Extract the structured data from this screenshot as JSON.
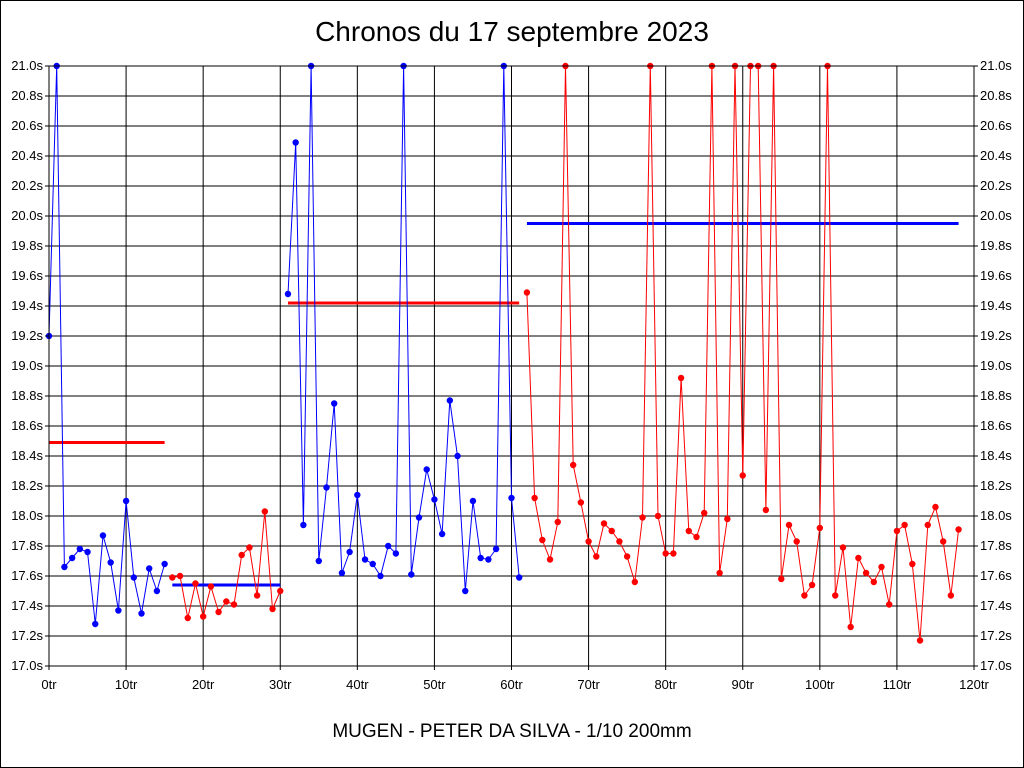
{
  "chart_data": {
    "type": "line",
    "title": "Chronos du 17 septembre 2023",
    "caption": "MUGEN - PETER DA SILVA - 1/10 200mm",
    "xlim": [
      0,
      120
    ],
    "ylim": [
      17.0,
      21.0
    ],
    "x_ticks": [
      0,
      10,
      20,
      30,
      40,
      50,
      60,
      70,
      80,
      90,
      100,
      110,
      120
    ],
    "x_tick_labels": [
      "0tr",
      "10tr",
      "20tr",
      "30tr",
      "40tr",
      "50tr",
      "60tr",
      "70tr",
      "80tr",
      "90tr",
      "100tr",
      "110tr",
      "120tr"
    ],
    "y_ticks": [
      17.0,
      17.2,
      17.4,
      17.6,
      17.8,
      18.0,
      18.2,
      18.4,
      18.6,
      18.8,
      19.0,
      19.2,
      19.4,
      19.6,
      19.8,
      20.0,
      20.2,
      20.4,
      20.6,
      20.8,
      21.0
    ],
    "y_tick_labels": [
      "17.0s",
      "17.2s",
      "17.4s",
      "17.6s",
      "17.8s",
      "18.0s",
      "18.2s",
      "18.4s",
      "18.6s",
      "18.8s",
      "19.0s",
      "19.2s",
      "19.4s",
      "19.6s",
      "19.8s",
      "20.0s",
      "20.2s",
      "20.4s",
      "20.6s",
      "20.8s",
      "21.0s"
    ],
    "grid": true,
    "series": [
      {
        "color": "#0000ff",
        "x": [
          0,
          1,
          2,
          3,
          4,
          5,
          6,
          7,
          8,
          9,
          10,
          11,
          12,
          13,
          14,
          15
        ],
        "y": [
          19.2,
          21.0,
          17.66,
          17.72,
          17.78,
          17.76,
          17.28,
          17.87,
          17.69,
          17.37,
          18.1,
          17.59,
          17.35,
          17.65,
          17.5,
          17.68
        ]
      },
      {
        "color": "#ff0000",
        "x": [
          16,
          17,
          18,
          19,
          20,
          21,
          22,
          23,
          24,
          25,
          26,
          27,
          28,
          29,
          30
        ],
        "y": [
          17.59,
          17.6,
          17.32,
          17.55,
          17.33,
          17.53,
          17.36,
          17.43,
          17.41,
          17.74,
          17.79,
          17.47,
          18.03,
          17.38,
          17.5
        ]
      },
      {
        "color": "#0000ff",
        "x": [
          31,
          32,
          33,
          34,
          35,
          36,
          37,
          38,
          39,
          40,
          41,
          42,
          43,
          44,
          45,
          46,
          47,
          48,
          49,
          50,
          51,
          52,
          53,
          54,
          55,
          56,
          57,
          58,
          59,
          60,
          61
        ],
        "y": [
          19.48,
          20.49,
          17.94,
          21.0,
          17.7,
          18.19,
          18.75,
          17.62,
          17.76,
          18.14,
          17.71,
          17.68,
          17.6,
          17.8,
          17.75,
          21.0,
          17.61,
          17.99,
          18.31,
          18.11,
          17.88,
          18.77,
          18.4,
          17.5,
          18.1,
          17.72,
          17.71,
          17.78,
          21.0,
          18.12,
          17.59
        ]
      },
      {
        "color": "#ff0000",
        "x": [
          62,
          63,
          64,
          65,
          66,
          67,
          68,
          69,
          70,
          71,
          72,
          73,
          74,
          75,
          76,
          77,
          78,
          79,
          80,
          81,
          82,
          83,
          84,
          85,
          86,
          87,
          88,
          89,
          90,
          91,
          92,
          93,
          94,
          95,
          96,
          97,
          98,
          99,
          100,
          101,
          102,
          103,
          104,
          105,
          106,
          107,
          108,
          109,
          110,
          111,
          112,
          113,
          114,
          115,
          116,
          117,
          118
        ],
        "y": [
          19.49,
          18.12,
          17.84,
          17.71,
          17.96,
          21.0,
          18.34,
          18.09,
          17.83,
          17.73,
          17.95,
          17.9,
          17.83,
          17.73,
          17.56,
          17.99,
          21.0,
          18.0,
          17.75,
          17.75,
          18.92,
          17.9,
          17.86,
          18.02,
          21.0,
          17.62,
          17.98,
          21.0,
          18.27,
          21.0,
          21.0,
          18.04,
          21.0,
          17.58,
          17.94,
          17.83,
          17.47,
          17.54,
          17.92,
          21.0,
          17.47,
          17.79,
          17.26,
          17.72,
          17.62,
          17.56,
          17.66,
          17.41,
          17.9,
          17.94,
          17.68,
          17.17,
          17.94,
          18.06,
          17.83,
          17.47,
          17.91
        ]
      }
    ],
    "reference_lines": [
      {
        "color": "#ff0000",
        "x": [
          0,
          15
        ],
        "y": 18.49
      },
      {
        "color": "#0000ff",
        "x": [
          16,
          30
        ],
        "y": 17.54
      },
      {
        "color": "#ff0000",
        "x": [
          31,
          61
        ],
        "y": 19.42
      },
      {
        "color": "#0000ff",
        "x": [
          62,
          118
        ],
        "y": 19.95
      }
    ]
  }
}
